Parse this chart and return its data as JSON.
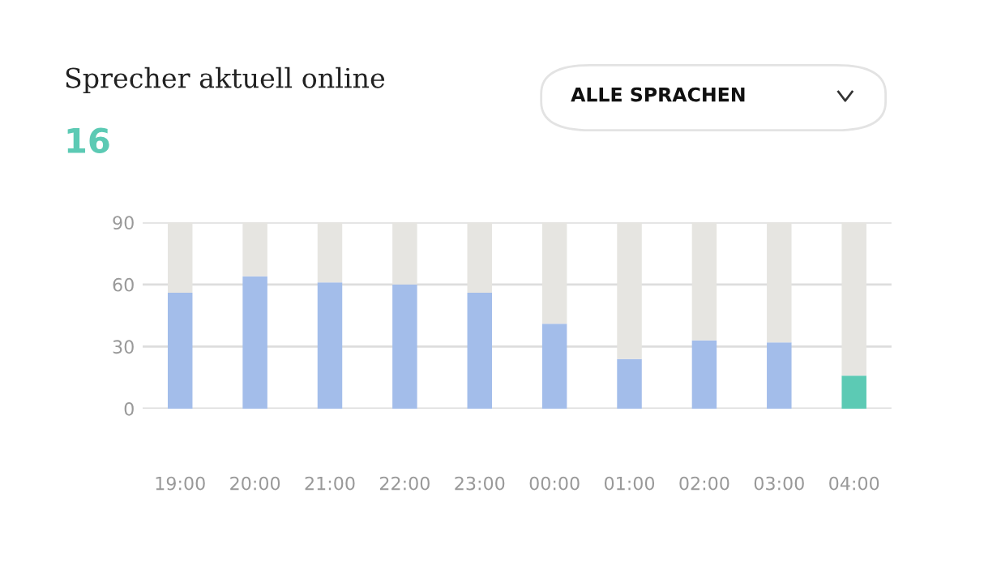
{
  "chart_data": {
    "type": "bar",
    "title": "Sprecher aktuell online",
    "subtitle": "16",
    "annotations": [
      "ALLE SPRACHEN"
    ],
    "categories": [
      "19:00",
      "20:00",
      "21:00",
      "22:00",
      "23:00",
      "00:00",
      "01:00",
      "02:00",
      "03:00",
      "04:00"
    ],
    "stacked": true,
    "series": [
      {
        "colors": [
          "#a3bdea",
          "#a3bdea",
          "#a3bdea",
          "#a3bdea",
          "#a3bdea",
          "#a3bdea",
          "#a3bdea",
          "#a3bdea",
          "#a3bdea",
          "#5ccab4"
        ],
        "values": [
          56,
          64,
          61,
          60,
          56,
          41,
          24,
          33,
          32,
          16
        ]
      },
      {
        "color": "#e6e5e1",
        "values": [
          34,
          26,
          29,
          30,
          34,
          49,
          66,
          57,
          58,
          74
        ]
      }
    ],
    "ylim": [
      0,
      90
    ],
    "yticks": [
      0,
      30,
      60,
      90
    ],
    "grid": "y",
    "legend": false
  }
}
